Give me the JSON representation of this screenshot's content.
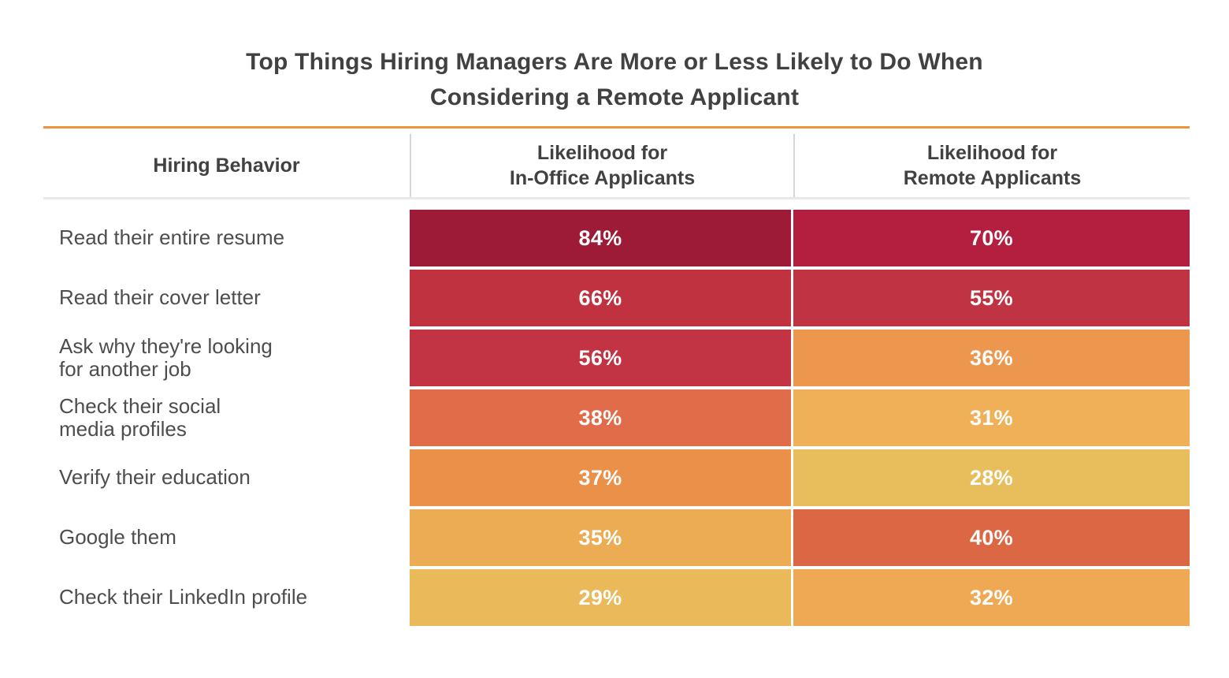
{
  "title": "Top Things Hiring Managers Are More or Less Likely to Do When\nConsidering a Remote Applicant",
  "accent_color": "#F0913B",
  "table": {
    "headers": {
      "behavior": "Hiring Behavior",
      "in_office": "Likelihood for\nIn-Office Applicants",
      "remote": "Likelihood for\nRemote Applicants"
    },
    "rows": [
      {
        "behavior": "Read their entire resume",
        "in_office": {
          "label": "84%",
          "color": "#9E1B38"
        },
        "remote": {
          "label": "70%",
          "color": "#B41F40"
        }
      },
      {
        "behavior": "Read their cover letter",
        "in_office": {
          "label": "66%",
          "color": "#C0323F"
        },
        "remote": {
          "label": "55%",
          "color": "#C03343"
        }
      },
      {
        "behavior": "Ask why they're looking\nfor another job",
        "in_office": {
          "label": "56%",
          "color": "#C23343"
        },
        "remote": {
          "label": "36%",
          "color": "#EC964E"
        }
      },
      {
        "behavior": "Check their social\nmedia profiles",
        "in_office": {
          "label": "38%",
          "color": "#E16C4A"
        },
        "remote": {
          "label": "31%",
          "color": "#EFB057"
        }
      },
      {
        "behavior": "Verify their education",
        "in_office": {
          "label": "37%",
          "color": "#EB9049"
        },
        "remote": {
          "label": "28%",
          "color": "#E8BE5C"
        }
      },
      {
        "behavior": "Google them",
        "in_office": {
          "label": "35%",
          "color": "#ECAC53"
        },
        "remote": {
          "label": "40%",
          "color": "#DC6744"
        }
      },
      {
        "behavior": "Check their LinkedIn profile",
        "in_office": {
          "label": "29%",
          "color": "#E9B95A"
        },
        "remote": {
          "label": "32%",
          "color": "#EFA954"
        }
      }
    ]
  },
  "chart_data": {
    "type": "heatmap",
    "title": "Top Things Hiring Managers Are More or Less Likely to Do When Considering a Remote Applicant",
    "categories": [
      "Read their entire resume",
      "Read their cover letter",
      "Ask why they're looking for another job",
      "Check their social media profiles",
      "Verify their education",
      "Google them",
      "Check their LinkedIn profile"
    ],
    "series": [
      {
        "name": "Likelihood for In-Office Applicants",
        "values": [
          84,
          66,
          56,
          38,
          37,
          35,
          29
        ]
      },
      {
        "name": "Likelihood for Remote Applicants",
        "values": [
          70,
          55,
          36,
          31,
          28,
          40,
          32
        ]
      }
    ],
    "unit": "%",
    "value_range": [
      28,
      84
    ],
    "color_scale": {
      "low": "#E8BE5C",
      "mid": "#E16C4A",
      "high": "#9E1B38"
    },
    "legend_position": "none",
    "grid": false
  }
}
